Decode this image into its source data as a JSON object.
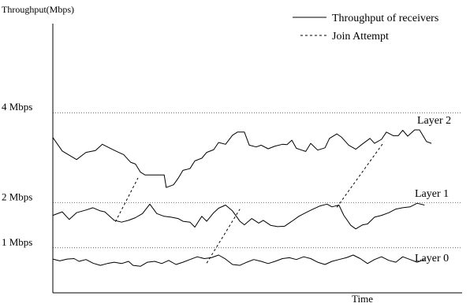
{
  "chart_data": {
    "type": "line",
    "ylabel": "Throughput(Mbps)",
    "xlabel": "Time",
    "ylim": [
      0,
      5.98
    ],
    "xlim": [
      0,
      100
    ],
    "y_ticks": [
      {
        "value": 1,
        "label": "1 Mbps"
      },
      {
        "value": 2,
        "label": "2 Mbps"
      },
      {
        "value": 4,
        "label": "4 Mbps"
      }
    ],
    "grid": "dotted horizontal at ticks",
    "legend_position": "top-right",
    "legend": [
      {
        "label": "Throughput of receivers",
        "style": "solid"
      },
      {
        "label": "Join Attempt",
        "style": "dashed"
      }
    ],
    "series": [
      {
        "name": "Layer 2",
        "style": "solid",
        "points": [
          [
            0,
            3.45
          ],
          [
            2.3,
            3.15
          ],
          [
            5.8,
            2.96
          ],
          [
            8.1,
            3.12
          ],
          [
            10.4,
            3.16
          ],
          [
            12.1,
            3.3
          ],
          [
            13.8,
            3.22
          ],
          [
            15.6,
            3.14
          ],
          [
            17.3,
            3.07
          ],
          [
            19.0,
            2.9
          ],
          [
            20.2,
            2.86
          ],
          [
            21.4,
            2.68
          ],
          [
            22.5,
            2.62
          ],
          [
            24.3,
            2.62
          ],
          [
            26.0,
            2.62
          ],
          [
            27.2,
            2.62
          ],
          [
            27.7,
            2.34
          ],
          [
            29.5,
            2.4
          ],
          [
            30.6,
            2.54
          ],
          [
            31.8,
            2.72
          ],
          [
            33.5,
            2.76
          ],
          [
            34.7,
            2.93
          ],
          [
            36.4,
            2.99
          ],
          [
            37.6,
            3.12
          ],
          [
            39.3,
            3.18
          ],
          [
            40.5,
            3.34
          ],
          [
            42.2,
            3.3
          ],
          [
            43.9,
            3.5
          ],
          [
            45.1,
            3.57
          ],
          [
            46.8,
            3.57
          ],
          [
            48.0,
            3.28
          ],
          [
            49.7,
            3.24
          ],
          [
            50.9,
            3.28
          ],
          [
            52.6,
            3.2
          ],
          [
            54.3,
            3.26
          ],
          [
            56.1,
            3.3
          ],
          [
            57.2,
            3.29
          ],
          [
            58.4,
            3.39
          ],
          [
            59.5,
            3.21
          ],
          [
            61.8,
            3.14
          ],
          [
            63.0,
            3.32
          ],
          [
            64.7,
            3.17
          ],
          [
            66.5,
            3.22
          ],
          [
            67.6,
            3.43
          ],
          [
            69.4,
            3.53
          ],
          [
            70.5,
            3.46
          ],
          [
            72.3,
            3.28
          ],
          [
            74.0,
            3.19
          ],
          [
            75.7,
            3.31
          ],
          [
            77.5,
            3.43
          ],
          [
            78.6,
            3.32
          ],
          [
            80.3,
            3.41
          ],
          [
            81.5,
            3.57
          ],
          [
            83.2,
            3.49
          ],
          [
            84.4,
            3.49
          ],
          [
            85.5,
            3.61
          ],
          [
            86.7,
            3.48
          ],
          [
            88.4,
            3.62
          ],
          [
            89.6,
            3.62
          ],
          [
            91.3,
            3.36
          ],
          [
            92.5,
            3.32
          ]
        ]
      },
      {
        "name": "Layer 1",
        "style": "solid",
        "points": [
          [
            0,
            1.72
          ],
          [
            2.3,
            1.8
          ],
          [
            4.0,
            1.63
          ],
          [
            5.8,
            1.78
          ],
          [
            8.1,
            1.84
          ],
          [
            9.8,
            1.89
          ],
          [
            11.6,
            1.82
          ],
          [
            12.7,
            1.8
          ],
          [
            13.9,
            1.7
          ],
          [
            15.0,
            1.61
          ],
          [
            16.8,
            1.57
          ],
          [
            18.5,
            1.61
          ],
          [
            20.2,
            1.67
          ],
          [
            21.9,
            1.76
          ],
          [
            23.7,
            1.97
          ],
          [
            25.4,
            1.76
          ],
          [
            27.2,
            1.7
          ],
          [
            28.9,
            1.68
          ],
          [
            30.6,
            1.65
          ],
          [
            31.8,
            1.59
          ],
          [
            33.5,
            1.57
          ],
          [
            34.7,
            1.46
          ],
          [
            36.4,
            1.7
          ],
          [
            37.6,
            1.59
          ],
          [
            39.3,
            1.78
          ],
          [
            40.5,
            1.88
          ],
          [
            42.2,
            1.95
          ],
          [
            43.9,
            1.82
          ],
          [
            45.7,
            1.59
          ],
          [
            46.8,
            1.51
          ],
          [
            48.6,
            1.65
          ],
          [
            50.3,
            1.55
          ],
          [
            51.4,
            1.61
          ],
          [
            53.2,
            1.5
          ],
          [
            54.9,
            1.47
          ],
          [
            56.6,
            1.48
          ],
          [
            58.4,
            1.59
          ],
          [
            60.1,
            1.7
          ],
          [
            61.8,
            1.78
          ],
          [
            63.6,
            1.86
          ],
          [
            65.3,
            1.93
          ],
          [
            67.0,
            1.97
          ],
          [
            68.2,
            1.91
          ],
          [
            69.9,
            1.95
          ],
          [
            71.1,
            1.72
          ],
          [
            72.8,
            1.5
          ],
          [
            74.0,
            1.42
          ],
          [
            75.7,
            1.51
          ],
          [
            76.9,
            1.53
          ],
          [
            78.6,
            1.68
          ],
          [
            80.3,
            1.72
          ],
          [
            82.1,
            1.78
          ],
          [
            83.8,
            1.86
          ],
          [
            85.5,
            1.89
          ],
          [
            87.3,
            1.91
          ],
          [
            89.0,
            1.99
          ],
          [
            90.8,
            1.95
          ]
        ]
      },
      {
        "name": "Layer 0",
        "style": "solid",
        "points": [
          [
            0,
            0.75
          ],
          [
            1.7,
            0.71
          ],
          [
            3.5,
            0.75
          ],
          [
            5.2,
            0.76
          ],
          [
            6.4,
            0.7
          ],
          [
            8.1,
            0.74
          ],
          [
            9.8,
            0.66
          ],
          [
            11.6,
            0.61
          ],
          [
            13.3,
            0.65
          ],
          [
            15.0,
            0.68
          ],
          [
            16.8,
            0.65
          ],
          [
            18.5,
            0.7
          ],
          [
            19.6,
            0.61
          ],
          [
            21.4,
            0.59
          ],
          [
            23.1,
            0.68
          ],
          [
            24.9,
            0.7
          ],
          [
            26.6,
            0.65
          ],
          [
            28.3,
            0.72
          ],
          [
            30.1,
            0.63
          ],
          [
            31.8,
            0.68
          ],
          [
            33.5,
            0.74
          ],
          [
            35.3,
            0.8
          ],
          [
            37.0,
            0.76
          ],
          [
            38.7,
            0.78
          ],
          [
            40.5,
            0.84
          ],
          [
            42.2,
            0.75
          ],
          [
            43.9,
            0.63
          ],
          [
            45.7,
            0.61
          ],
          [
            47.4,
            0.68
          ],
          [
            49.1,
            0.74
          ],
          [
            50.9,
            0.7
          ],
          [
            52.6,
            0.65
          ],
          [
            54.3,
            0.7
          ],
          [
            56.1,
            0.76
          ],
          [
            57.8,
            0.78
          ],
          [
            59.5,
            0.74
          ],
          [
            61.3,
            0.8
          ],
          [
            63.0,
            0.76
          ],
          [
            64.7,
            0.68
          ],
          [
            66.5,
            0.63
          ],
          [
            68.2,
            0.7
          ],
          [
            69.9,
            0.74
          ],
          [
            71.7,
            0.78
          ],
          [
            73.4,
            0.84
          ],
          [
            75.1,
            0.76
          ],
          [
            76.9,
            0.65
          ],
          [
            78.6,
            0.74
          ],
          [
            80.3,
            0.8
          ],
          [
            82.1,
            0.72
          ],
          [
            83.8,
            0.68
          ],
          [
            85.5,
            0.8
          ],
          [
            87.3,
            0.74
          ],
          [
            89.0,
            0.68
          ],
          [
            90.8,
            0.74
          ]
        ]
      },
      {
        "name": "Join Attempt",
        "style": "dashed",
        "segments": [
          [
            [
              15.3,
              1.58
            ],
            [
              20.8,
              2.55
            ]
          ],
          [
            [
              37.6,
              0.66
            ],
            [
              45.7,
              1.86
            ]
          ],
          [
            [
              69.4,
              1.9
            ],
            [
              80.9,
              3.35
            ]
          ]
        ]
      }
    ],
    "series_labels": [
      "Layer 2",
      "Layer 1",
      "Layer 0"
    ]
  }
}
